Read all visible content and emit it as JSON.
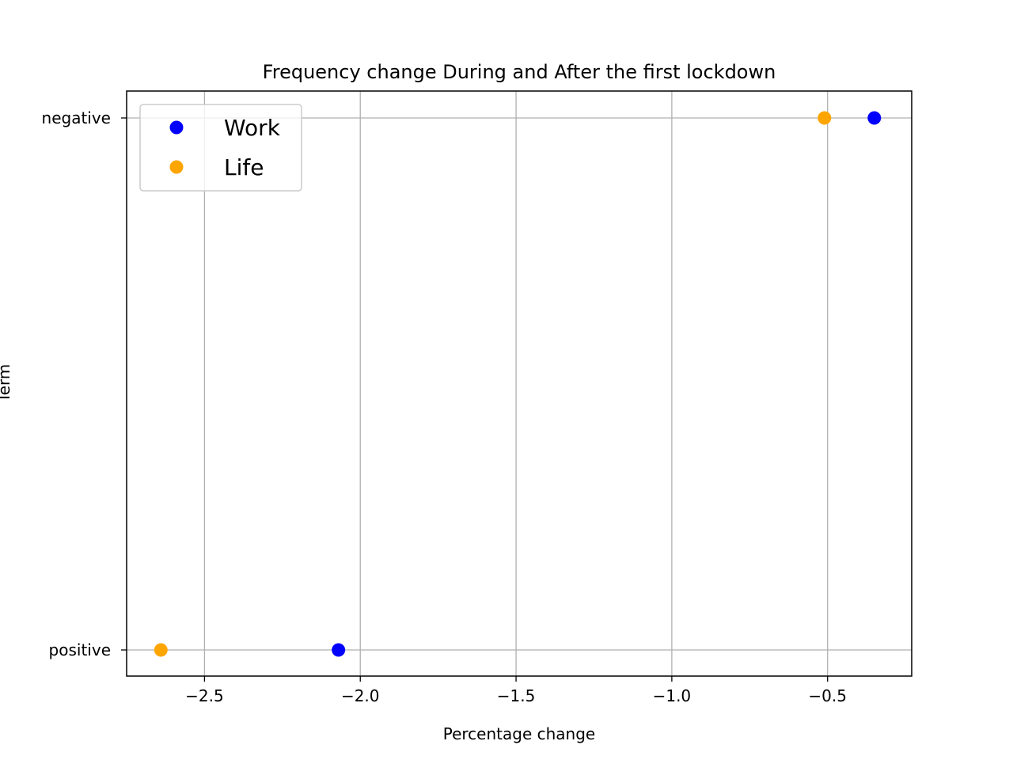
{
  "chart_data": {
    "type": "scatter",
    "title": "Frequency change During and After the first lockdown",
    "xlabel": "Percentage change",
    "ylabel": "Term",
    "xlim": [
      -2.75,
      -0.23
    ],
    "x_ticks": [
      -2.5,
      -2.0,
      -1.5,
      -1.0,
      -0.5
    ],
    "x_tick_labels": [
      "−2.5",
      "−2.0",
      "−1.5",
      "−1.0",
      "−0.5"
    ],
    "categories": [
      "positive",
      "negative"
    ],
    "grid": true,
    "legend_position": "upper-left",
    "series": [
      {
        "name": "Work",
        "color": "#0000ff",
        "points": [
          {
            "x": -2.07,
            "y": "positive"
          },
          {
            "x": -0.35,
            "y": "negative"
          }
        ]
      },
      {
        "name": "Life",
        "color": "#ffa500",
        "points": [
          {
            "x": -2.64,
            "y": "positive"
          },
          {
            "x": -0.51,
            "y": "negative"
          }
        ]
      }
    ]
  }
}
